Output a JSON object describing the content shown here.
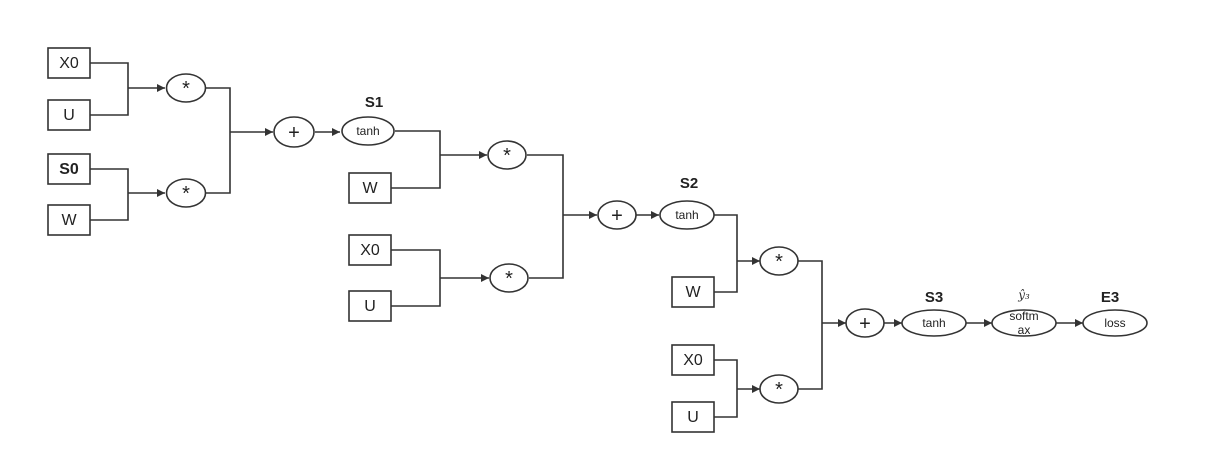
{
  "inputs": {
    "x0": "X0",
    "u": "U",
    "s0": "S0",
    "w": "W"
  },
  "operators": {
    "multiply": "*",
    "add": "+"
  },
  "activations": {
    "tanh": "tanh",
    "softmax_line1": "softm",
    "softmax_line2": "ax",
    "loss": "loss"
  },
  "stages": {
    "s1": "S1",
    "s2": "S2",
    "s3": "S3",
    "y_hat": "ŷ₃",
    "e3": "E3"
  }
}
